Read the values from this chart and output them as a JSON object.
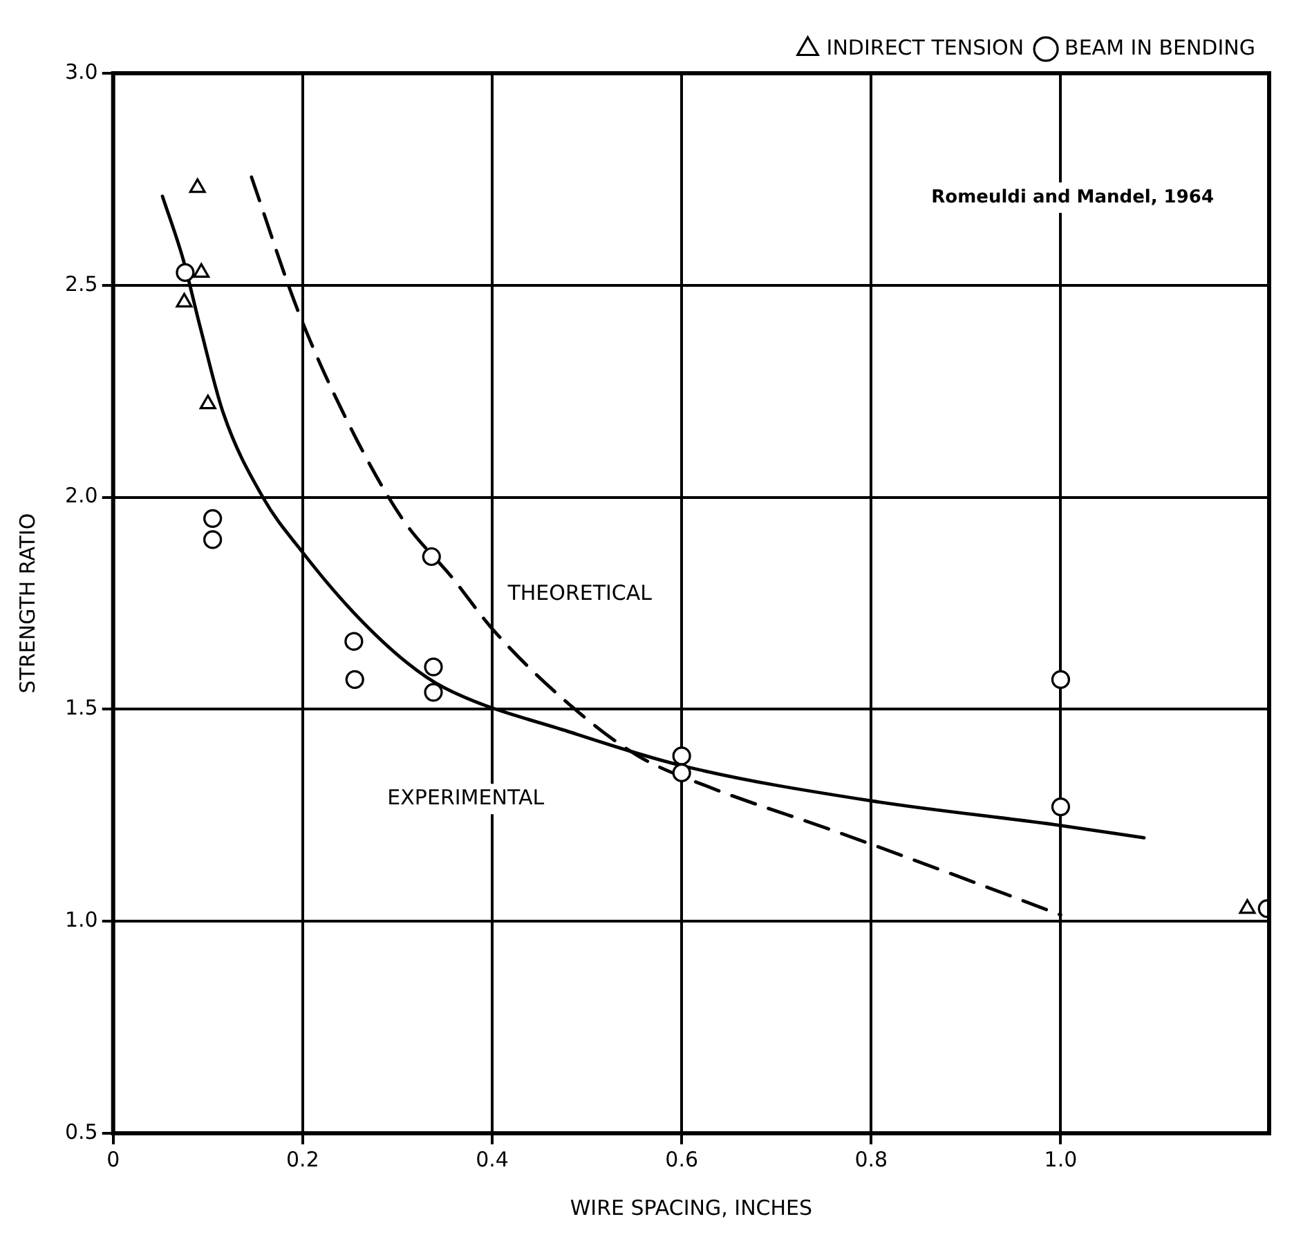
{
  "chart_data": {
    "type": "scatter",
    "xlabel": "WIRE SPACING, INCHES",
    "ylabel": "STRENGTH RATIO",
    "annotations": [
      "Romeuldi and Mandel, 1964"
    ],
    "xlim": [
      0,
      1.22
    ],
    "xticks": [
      {
        "value": 0,
        "label": "0"
      },
      0.2,
      0.4,
      0.6,
      0.8,
      {
        "value": 1,
        "label": "1.0"
      }
    ],
    "ylim": [
      0.5,
      3
    ],
    "yticks": [
      0.5,
      {
        "value": 1,
        "label": "1.0"
      },
      1.5,
      {
        "value": 2,
        "label": "2.0"
      },
      2.5,
      {
        "value": 3,
        "label": "3.0"
      }
    ],
    "grid": true,
    "legend": "top right",
    "series": [
      {
        "name": "INDIRECT TENSION",
        "type": "scatter",
        "marker": "triangle",
        "color": "#000000",
        "x": [
          0.089,
          0.093,
          0.075,
          0.1,
          1.197
        ],
        "values": [
          2.73,
          2.53,
          2.46,
          2.22,
          1.03
        ]
      },
      {
        "name": "BEAM IN BENDING",
        "type": "scatter",
        "marker": "circle",
        "color": "#000000",
        "x": [
          0.076,
          0.105,
          0.105,
          0.336,
          0.254,
          0.255,
          0.338,
          0.338,
          0.6,
          0.6,
          1.0,
          1.0,
          1.218
        ],
        "values": [
          2.53,
          1.95,
          1.9,
          1.86,
          1.66,
          1.57,
          1.6,
          1.54,
          1.39,
          1.35,
          1.57,
          1.27,
          1.03
        ]
      },
      {
        "name": "THEORETICAL",
        "type": "line",
        "line_style": "dashed",
        "marker": "none",
        "color": "#000000",
        "x": [
          0.146,
          0.195,
          0.247,
          0.305,
          0.358,
          0.4,
          0.477,
          0.554,
          0.625,
          0.765,
          0.905,
          1.0
        ],
        "values": [
          2.755,
          2.44,
          2.18,
          1.95,
          1.81,
          1.69,
          1.52,
          1.39,
          1.32,
          1.21,
          1.095,
          1.015
        ]
      },
      {
        "name": "EXPERIMENTAL",
        "type": "line",
        "line_style": "solid",
        "marker": "none",
        "color": "#000000",
        "x": [
          0.052,
          0.074,
          0.092,
          0.116,
          0.158,
          0.2,
          0.253,
          0.31,
          0.35,
          0.484,
          0.604,
          0.8,
          1.0,
          1.088
        ],
        "values": [
          2.71,
          2.56,
          2.4,
          2.2,
          2.0,
          1.87,
          1.73,
          1.61,
          1.55,
          1.445,
          1.365,
          1.284,
          1.226,
          1.197
        ]
      }
    ]
  }
}
